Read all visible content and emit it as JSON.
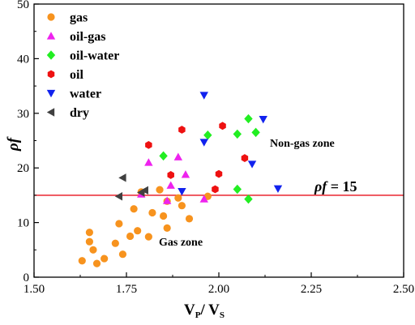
{
  "chart_data": {
    "type": "scatter",
    "title": "",
    "xlabel": {
      "main": "V",
      "sub1": "P",
      "mid": "/ V",
      "sub2": "S"
    },
    "ylabel": "ρf",
    "xlim": [
      1.5,
      2.5
    ],
    "ylim": [
      0,
      50
    ],
    "xticks": [
      "1.50",
      "1.75",
      "2.00",
      "2.25",
      "2.50"
    ],
    "yticks": [
      "0",
      "10",
      "20",
      "30",
      "40",
      "50"
    ],
    "grid": false,
    "legend_position": "top-left",
    "threshold": {
      "y": 15,
      "label_symbol": "ρf",
      "label_text": " = 15",
      "color": "#e8111c"
    },
    "annotations": {
      "non_gas": "Non-gas zone",
      "gas": "Gas zone"
    },
    "series": [
      {
        "name": "gas",
        "marker": "circle",
        "color": "#f7931e",
        "points": [
          [
            1.63,
            3.0
          ],
          [
            1.65,
            6.5
          ],
          [
            1.65,
            8.2
          ],
          [
            1.66,
            5.0
          ],
          [
            1.67,
            2.5
          ],
          [
            1.69,
            3.4
          ],
          [
            1.72,
            6.2
          ],
          [
            1.73,
            9.8
          ],
          [
            1.74,
            4.2
          ],
          [
            1.76,
            7.5
          ],
          [
            1.78,
            8.5
          ],
          [
            1.77,
            12.5
          ],
          [
            1.79,
            15.6
          ],
          [
            1.81,
            7.4
          ],
          [
            1.82,
            11.8
          ],
          [
            1.84,
            16.0
          ],
          [
            1.85,
            11.2
          ],
          [
            1.86,
            13.9
          ],
          [
            1.86,
            9.0
          ],
          [
            1.89,
            14.5
          ],
          [
            1.9,
            13.1
          ],
          [
            1.92,
            10.7
          ],
          [
            1.97,
            14.8
          ]
        ]
      },
      {
        "name": "oil-gas",
        "marker": "triangle-up",
        "color": "#ee22ee",
        "points": [
          [
            1.79,
            15.2
          ],
          [
            1.81,
            21.0
          ],
          [
            1.86,
            14.0
          ],
          [
            1.87,
            16.8
          ],
          [
            1.89,
            22.0
          ],
          [
            1.91,
            18.8
          ],
          [
            1.96,
            14.3
          ]
        ]
      },
      {
        "name": "oil-water",
        "marker": "diamond",
        "color": "#22ee22",
        "points": [
          [
            1.85,
            22.2
          ],
          [
            1.97,
            26.0
          ],
          [
            2.05,
            26.2
          ],
          [
            2.08,
            29.0
          ],
          [
            2.1,
            26.5
          ],
          [
            2.05,
            16.1
          ],
          [
            2.08,
            14.3
          ]
        ]
      },
      {
        "name": "oil",
        "marker": "hexagon",
        "color": "#ee1111",
        "points": [
          [
            1.81,
            24.2
          ],
          [
            1.87,
            18.7
          ],
          [
            1.9,
            27.0
          ],
          [
            1.99,
            16.1
          ],
          [
            2.0,
            18.9
          ],
          [
            2.01,
            27.7
          ],
          [
            2.07,
            21.8
          ]
        ]
      },
      {
        "name": "water",
        "marker": "triangle-down",
        "color": "#1122ee",
        "points": [
          [
            1.9,
            15.7
          ],
          [
            1.96,
            24.7
          ],
          [
            1.96,
            33.3
          ],
          [
            2.09,
            20.7
          ],
          [
            2.12,
            28.9
          ],
          [
            2.16,
            16.2
          ]
        ]
      },
      {
        "name": "dry",
        "marker": "triangle-left",
        "color": "#404040",
        "points": [
          [
            1.73,
            14.8
          ],
          [
            1.74,
            18.2
          ],
          [
            1.79,
            15.5
          ],
          [
            1.8,
            15.9
          ]
        ]
      }
    ]
  }
}
